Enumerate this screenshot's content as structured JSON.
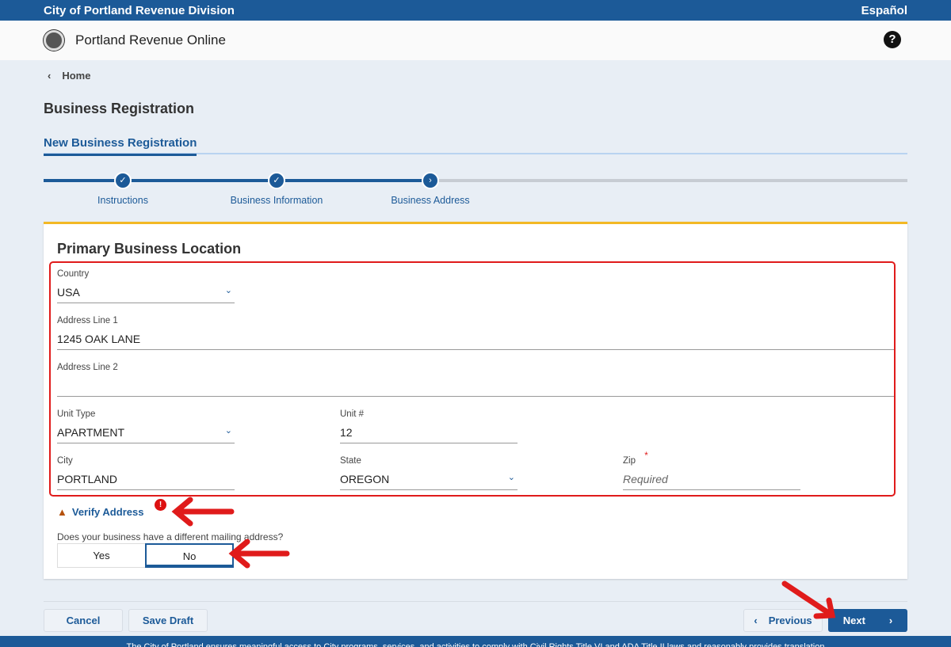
{
  "topbar": {
    "org": "City of Portland Revenue Division",
    "language_link": "Español"
  },
  "header": {
    "app_title": "Portland Revenue Online",
    "help_icon": "?"
  },
  "breadcrumb": {
    "back_label": "Home"
  },
  "page": {
    "title": "Business Registration",
    "tab": "New Business Registration"
  },
  "stepper": {
    "steps": [
      {
        "label": "Instructions",
        "status": "complete"
      },
      {
        "label": "Business Information",
        "status": "complete"
      },
      {
        "label": "Business Address",
        "status": "current"
      }
    ]
  },
  "form": {
    "title": "Primary Business Location",
    "country": {
      "label": "Country",
      "value": "USA"
    },
    "address1": {
      "label": "Address Line 1",
      "value": "1245 OAK LANE"
    },
    "address2": {
      "label": "Address Line 2",
      "value": ""
    },
    "unit_type": {
      "label": "Unit Type",
      "value": "APARTMENT"
    },
    "unit_number": {
      "label": "Unit #",
      "value": "12"
    },
    "city": {
      "label": "City",
      "value": "PORTLAND"
    },
    "state": {
      "label": "State",
      "value": "OREGON"
    },
    "zip": {
      "label": "Zip",
      "required_mark": "*",
      "placeholder": "Required",
      "value": ""
    },
    "verify_label": "Verify Address",
    "mailing_question": "Does your business have a different mailing address?",
    "yes_label": "Yes",
    "no_label": "No",
    "selected": "No"
  },
  "actions": {
    "cancel": "Cancel",
    "save_draft": "Save Draft",
    "previous": "Previous",
    "next": "Next"
  },
  "footer": {
    "text": "The City of Portland ensures meaningful access to City programs, services, and activities to comply with Civil Rights Title VI and ADA Title II laws and reasonably provides translation"
  },
  "colors": {
    "primary": "#1c5a98",
    "accent": "#f2b825",
    "annotation": "#e01b1b",
    "warning": "#b5520d"
  }
}
